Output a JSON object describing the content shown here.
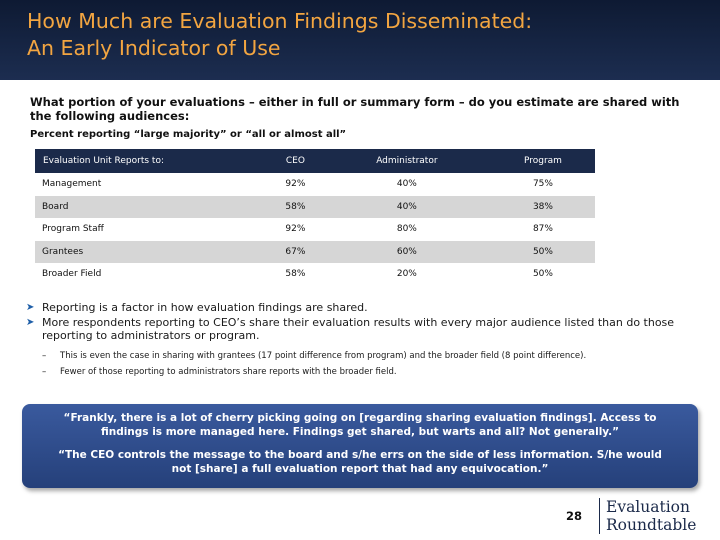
{
  "header": {
    "title_line1": "How Much are Evaluation Findings Disseminated:",
    "title_line2": "An Early Indicator of Use",
    "title_color": "#f2a541",
    "background": "#15243f"
  },
  "question": "What portion of your evaluations – either in full or summary form – do you estimate are shared with the following audiences:",
  "note": "Percent reporting “large majority” or “all or almost all”",
  "table": {
    "headers": [
      "Evaluation Unit Reports to:",
      "CEO",
      "Administrator",
      "Program"
    ],
    "rows": [
      {
        "label": "Management",
        "ceo": "92%",
        "admin": "40%",
        "program": "75%"
      },
      {
        "label": "Board",
        "ceo": "58%",
        "admin": "40%",
        "program": "38%"
      },
      {
        "label": "Program Staff",
        "ceo": "92%",
        "admin": "80%",
        "program": "87%"
      },
      {
        "label": "Grantees",
        "ceo": "67%",
        "admin": "60%",
        "program": "50%"
      },
      {
        "label": "Broader Field",
        "ceo": "58%",
        "admin": "20%",
        "program": "50%"
      }
    ]
  },
  "bullets": [
    "Reporting is a factor in how evaluation findings are shared.",
    "More respondents reporting to CEO’s share their evaluation results with every major audience listed than do those reporting to administrators or program."
  ],
  "sub_bullets": [
    "This is even the case in sharing with grantees (17 point difference from program) and the broader field (8 point difference).",
    "Fewer of those reporting to administrators share reports with the broader field."
  ],
  "quotes": [
    "“Frankly, there is a lot of cherry picking going on [regarding sharing evaluation findings]. Access to findings is more managed here. Findings get shared, but warts and all? Not generally.”",
    "“The CEO controls the message to the board and s/he errs on the side of less information. S/he would not [share] a full evaluation report that had any equivocation.”"
  ],
  "footer": {
    "page_number": "28",
    "logo_line1": "Evaluation",
    "logo_line2": "Roundtable"
  }
}
